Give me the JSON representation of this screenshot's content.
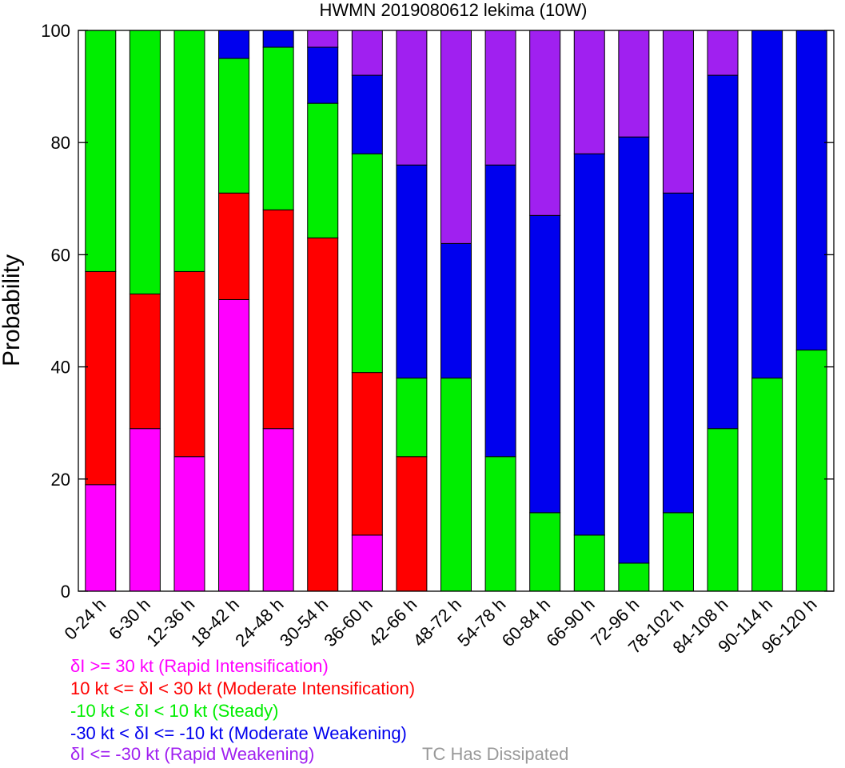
{
  "chart_data": {
    "type": "bar",
    "stacked": true,
    "title": "HWMN 2019080612 lekima (10W)",
    "xlabel": "",
    "ylabel": "Probability",
    "ylim": [
      0,
      100
    ],
    "yticks": [
      0,
      20,
      40,
      60,
      80,
      100
    ],
    "grid": false,
    "categories": [
      "0-24 h",
      "6-30 h",
      "12-36 h",
      "18-42 h",
      "24-48 h",
      "30-54 h",
      "36-60 h",
      "42-66 h",
      "48-72 h",
      "54-78 h",
      "60-84 h",
      "66-90 h",
      "72-96 h",
      "78-102 h",
      "84-108 h",
      "90-114 h",
      "96-120 h"
    ],
    "series": [
      {
        "name": "δI >= 30 kt (Rapid Intensification)",
        "color": "#ff00ff",
        "values": [
          19,
          29,
          24,
          52,
          29,
          0,
          10,
          0,
          0,
          0,
          0,
          0,
          0,
          0,
          0,
          0,
          0
        ]
      },
      {
        "name": "10 kt <= δI < 30 kt (Moderate Intensification)",
        "color": "#ff0000",
        "values": [
          38,
          24,
          33,
          19,
          39,
          63,
          29,
          24,
          0,
          0,
          0,
          0,
          0,
          0,
          0,
          0,
          0
        ]
      },
      {
        "name": "-10 kt < δI < 10 kt (Steady)",
        "color": "#00ee00",
        "values": [
          43,
          47,
          43,
          24,
          29,
          24,
          39,
          14,
          38,
          24,
          14,
          10,
          5,
          14,
          29,
          38,
          43
        ]
      },
      {
        "name": "-30 kt < δI <= -10 kt (Moderate Weakening)",
        "color": "#0000ee",
        "values": [
          0,
          0,
          0,
          5,
          3,
          10,
          14,
          38,
          24,
          52,
          53,
          68,
          76,
          57,
          63,
          62,
          57
        ]
      },
      {
        "name": "δI <= -30 kt (Rapid Weakening)",
        "color": "#a020f0",
        "values": [
          0,
          0,
          0,
          0,
          0,
          3,
          8,
          24,
          38,
          24,
          33,
          22,
          19,
          29,
          8,
          0,
          0
        ]
      }
    ],
    "dissipated": {
      "label": "TC Has Dissipated",
      "color": "#999999"
    }
  }
}
